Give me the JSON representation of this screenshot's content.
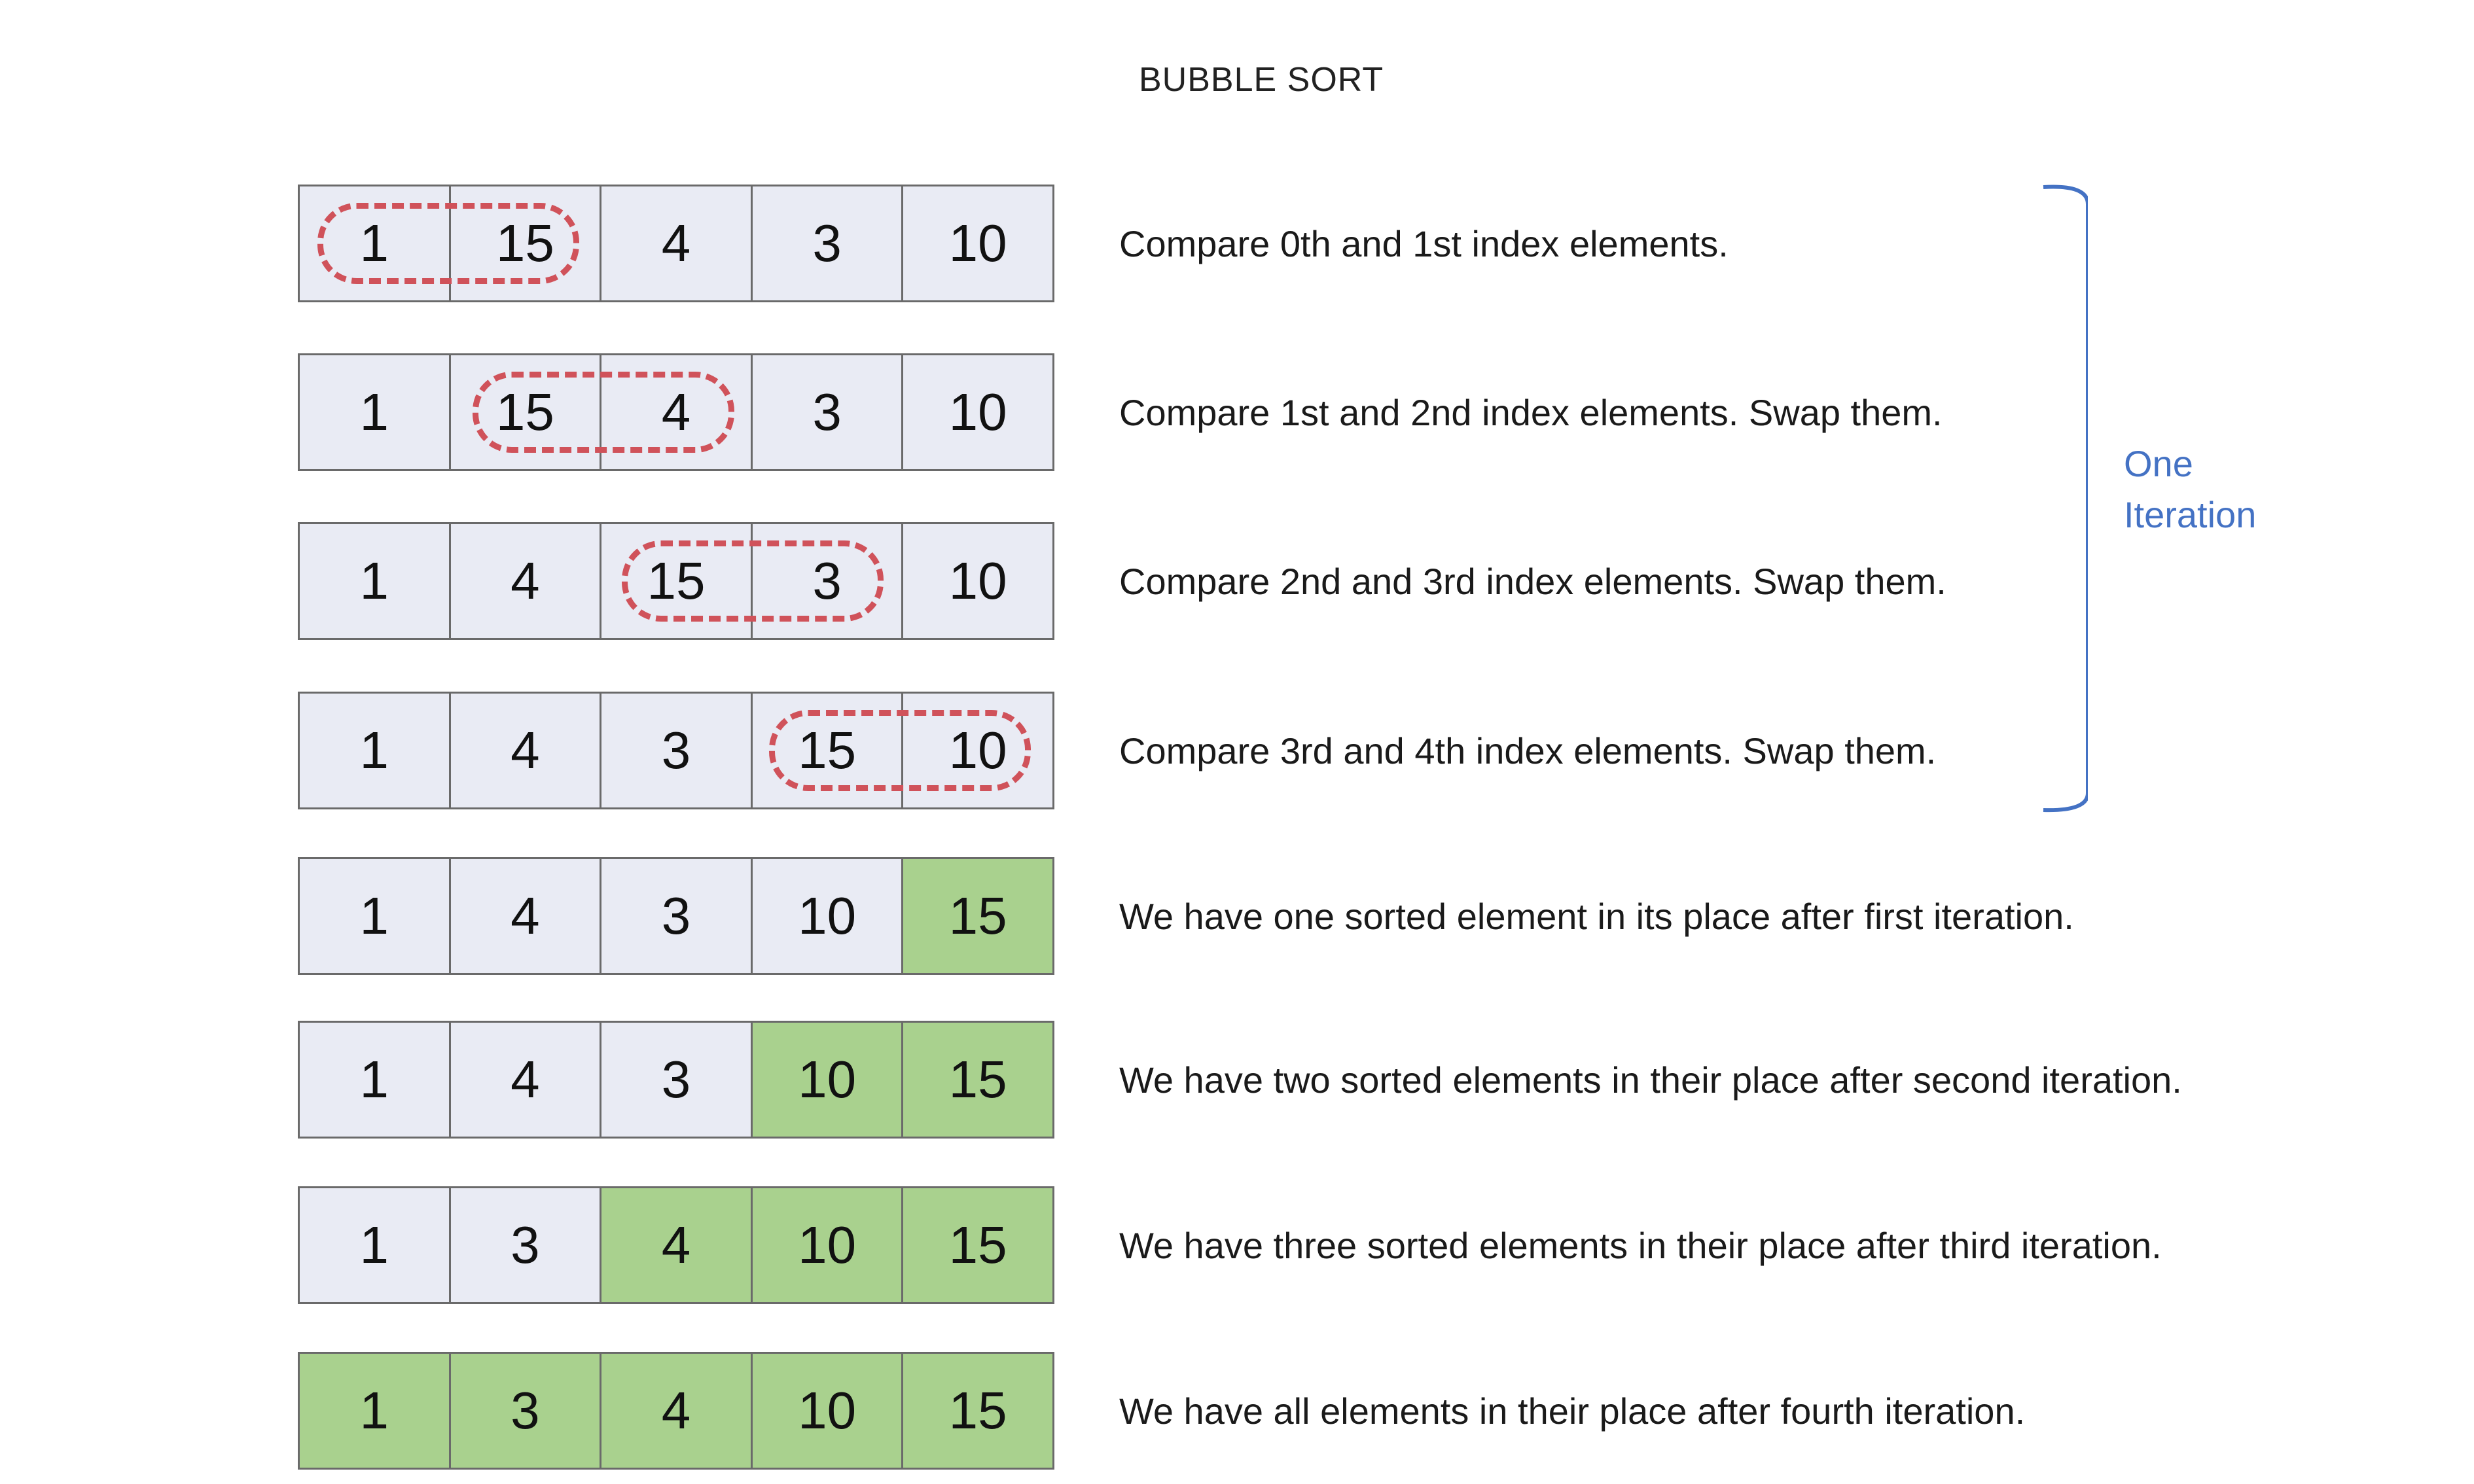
{
  "title": "BUBBLE SORT",
  "colors": {
    "cell_background": "#e9ebf4",
    "sorted_cell": "#a9d18e",
    "compare_outline": "#d0525a",
    "bracket": "#4472c4"
  },
  "rows": [
    {
      "values": [
        "1",
        "15",
        "4",
        "3",
        "10"
      ],
      "description": "Compare 0th and 1st index elements."
    },
    {
      "values": [
        "1",
        "15",
        "4",
        "3",
        "10"
      ],
      "description": "Compare 1st and 2nd index elements. Swap them."
    },
    {
      "values": [
        "1",
        "4",
        "15",
        "3",
        "10"
      ],
      "description": "Compare 2nd and 3rd index elements. Swap them."
    },
    {
      "values": [
        "1",
        "4",
        "3",
        "15",
        "10"
      ],
      "description": "Compare 3rd and 4th index elements. Swap them."
    },
    {
      "values": [
        "1",
        "4",
        "3",
        "10",
        "15"
      ],
      "description": "We have one sorted element in its place after first iteration."
    },
    {
      "values": [
        "1",
        "4",
        "3",
        "10",
        "15"
      ],
      "description": "We have two sorted elements in their place after second iteration."
    },
    {
      "values": [
        "1",
        "3",
        "4",
        "10",
        "15"
      ],
      "description": "We have three sorted elements in their place after third iteration."
    },
    {
      "values": [
        "1",
        "3",
        "4",
        "10",
        "15"
      ],
      "description": "We have all elements in their place after fourth iteration."
    }
  ],
  "bracket": {
    "line1": "One",
    "line2": "Iteration"
  }
}
